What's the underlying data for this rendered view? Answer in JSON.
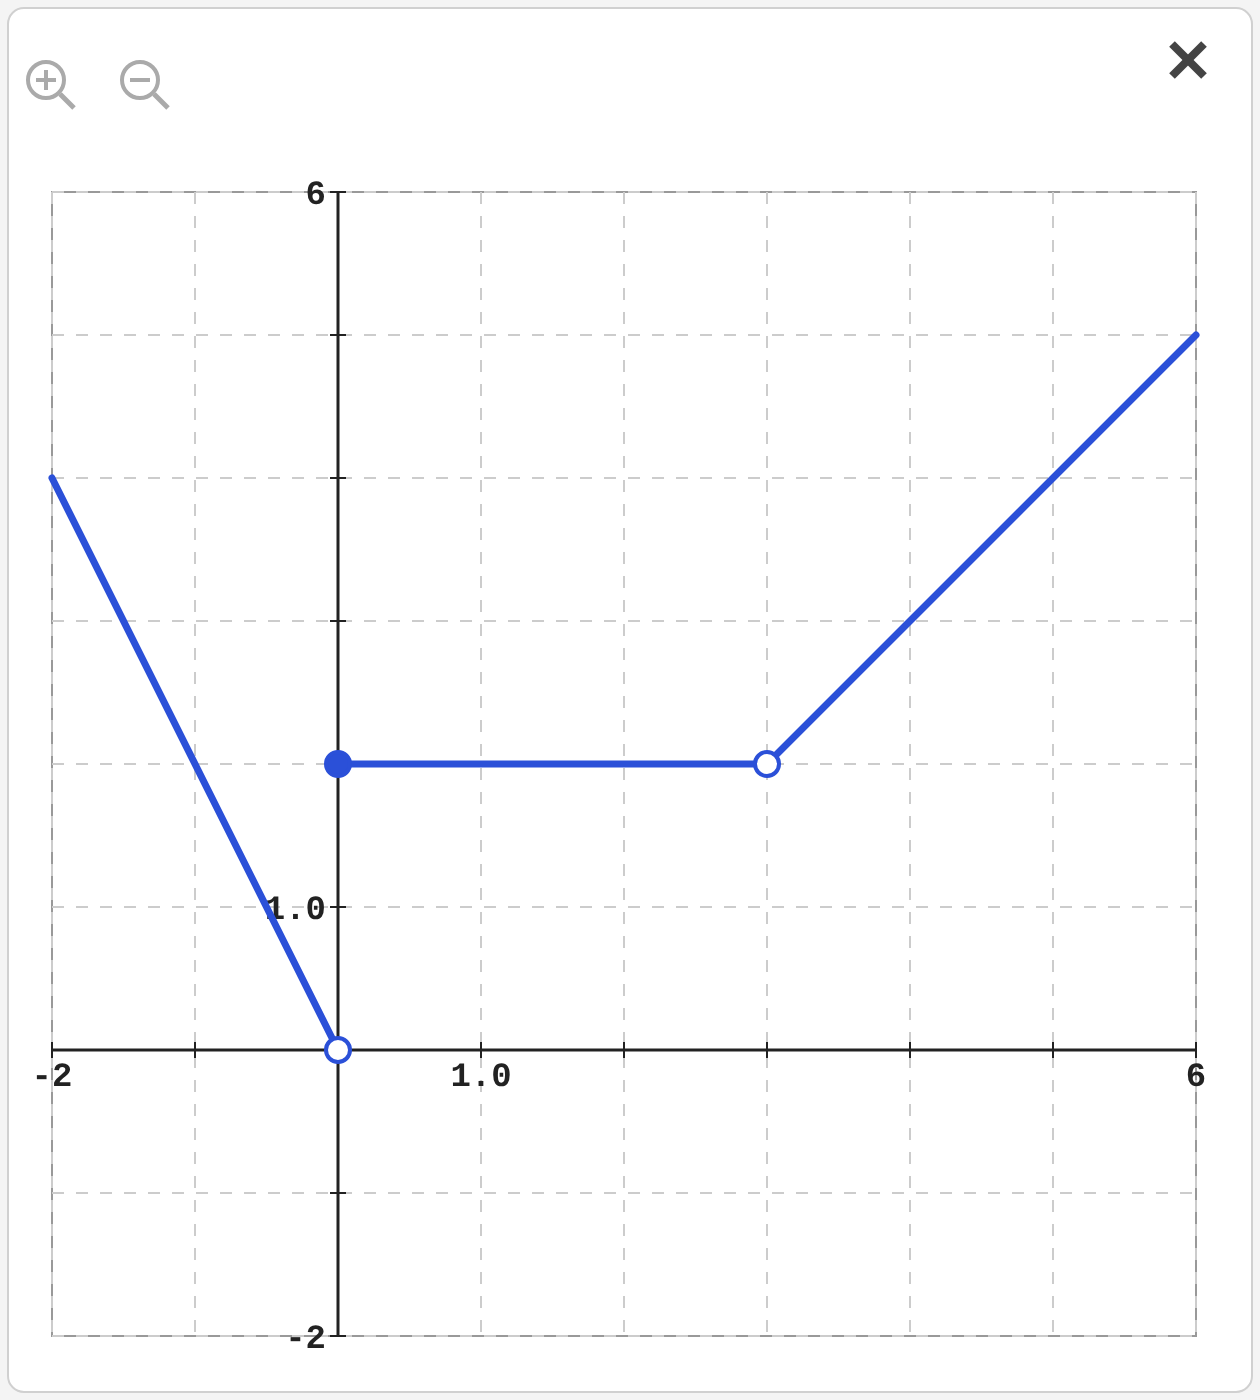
{
  "chart_data": {
    "type": "line",
    "xlim": [
      -2,
      6
    ],
    "ylim": [
      -2,
      6
    ],
    "xticks": [
      {
        "value": -2,
        "label": "-2"
      },
      {
        "value": -1,
        "label": null
      },
      {
        "value": 0,
        "label": null
      },
      {
        "value": 1,
        "label": "1.0"
      },
      {
        "value": 2,
        "label": null
      },
      {
        "value": 3,
        "label": null
      },
      {
        "value": 4,
        "label": null
      },
      {
        "value": 5,
        "label": null
      },
      {
        "value": 6,
        "label": "6"
      }
    ],
    "yticks": [
      {
        "value": -2,
        "label": "-2"
      },
      {
        "value": -1,
        "label": null
      },
      {
        "value": 0,
        "label": null
      },
      {
        "value": 1,
        "label": "1.0"
      },
      {
        "value": 2,
        "label": null
      },
      {
        "value": 3,
        "label": null
      },
      {
        "value": 4,
        "label": null
      },
      {
        "value": 5,
        "label": null
      },
      {
        "value": 6,
        "label": "6"
      }
    ],
    "grid": true,
    "line_style": "solid",
    "marker": "none",
    "series": [
      {
        "color": "#2b50d8",
        "x": [
          -2,
          0
        ],
        "values": [
          4,
          0
        ]
      },
      {
        "color": "#2b50d8",
        "x": [
          0,
          3
        ],
        "values": [
          2,
          2
        ]
      },
      {
        "color": "#2b50d8",
        "x": [
          3,
          6
        ],
        "values": [
          2,
          5
        ]
      },
      {
        "type": "scatter",
        "marker": "circle",
        "color": "#2b50d8",
        "x": [
          0
        ],
        "values": [
          2
        ],
        "colors": [
          "#2b50d8"
        ]
      },
      {
        "type": "scatter",
        "marker": "circle",
        "color": "#2b50d8",
        "x": [
          0,
          3
        ],
        "values": [
          0,
          2
        ],
        "colors": [
          "#ffffff",
          "#ffffff"
        ]
      }
    ]
  }
}
